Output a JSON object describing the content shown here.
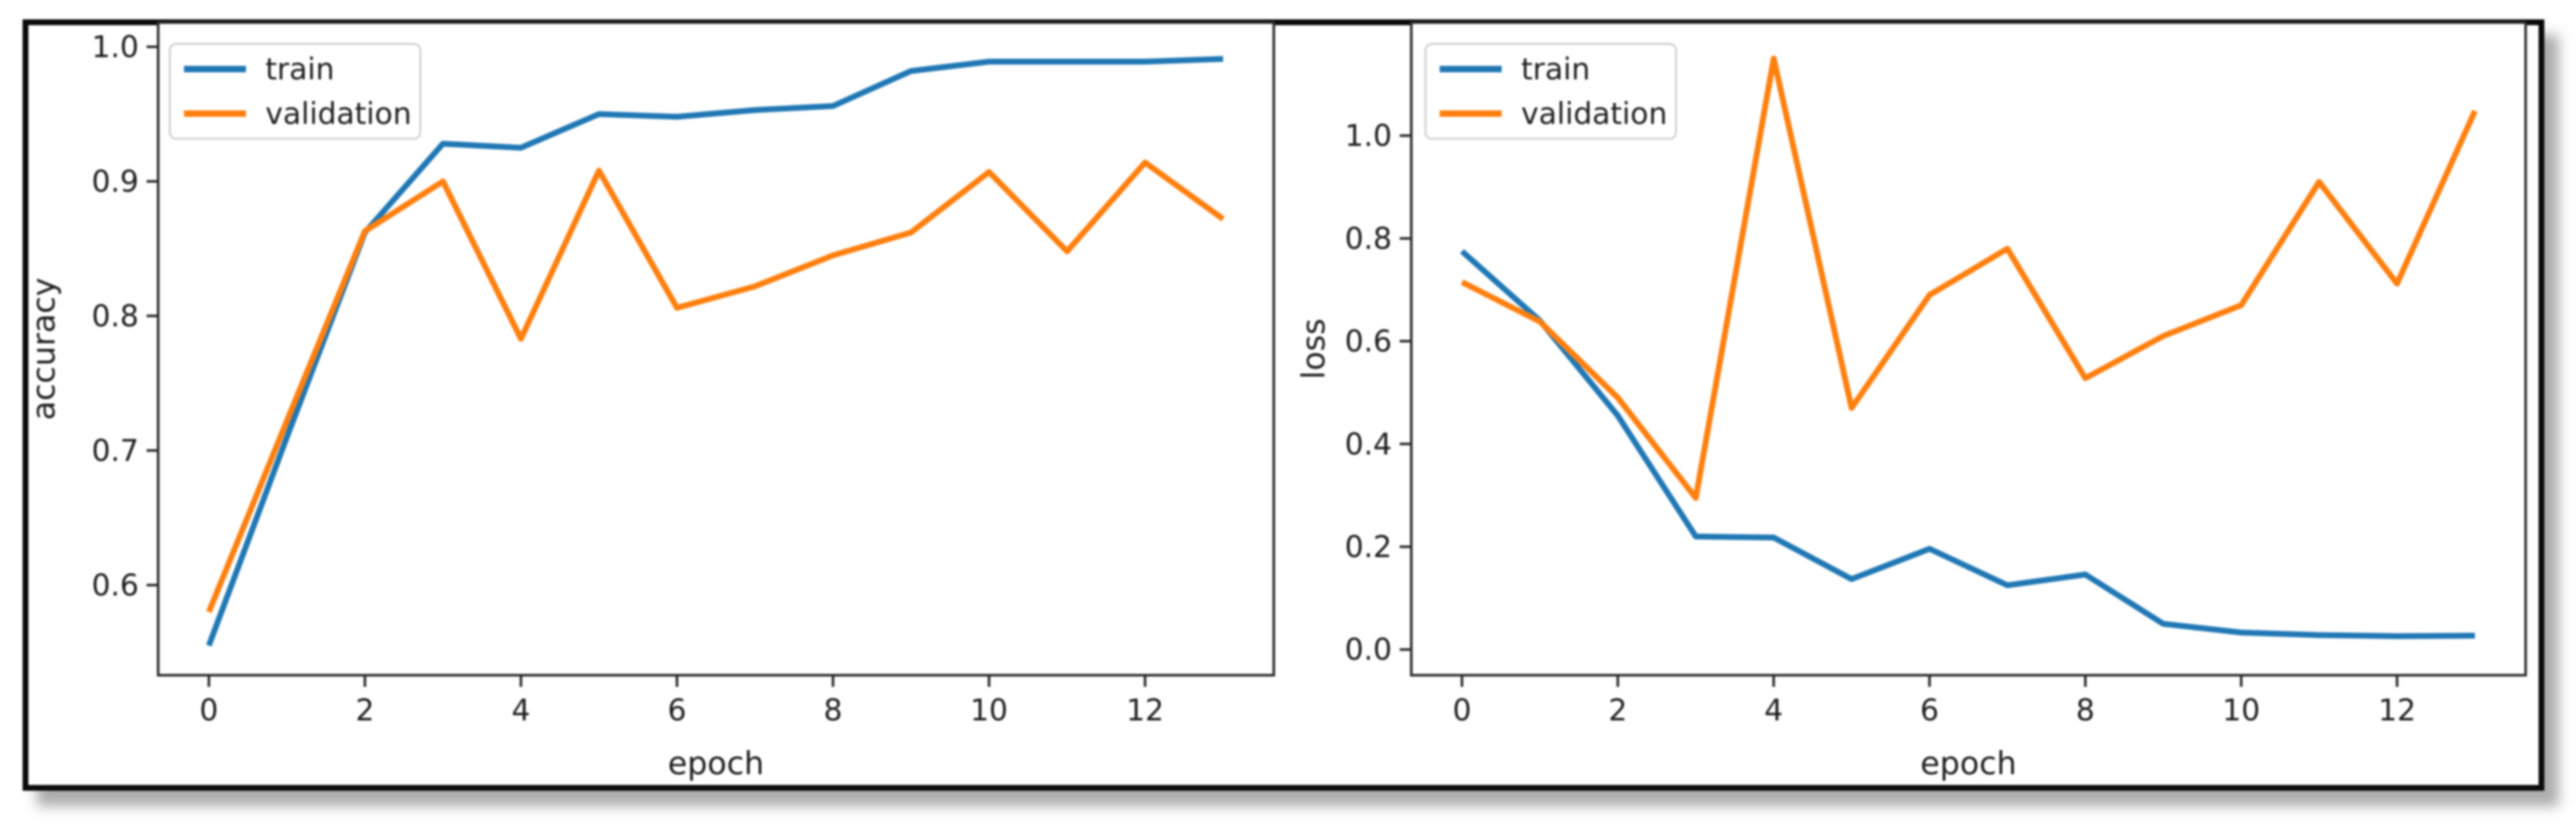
{
  "figure": {
    "description": "Two side-by-side training curve plots (matplotlib style) inside a black frame with drop shadow",
    "background": "#ffffff",
    "frame_border_color": "#0a0a0a"
  },
  "colors": {
    "train": "#1f77b4",
    "validation": "#ff7f0e",
    "text": "#1d1d1d",
    "spine": "#2a2a2a",
    "legend_border": "#cfcfcf",
    "legend_fill": "#ffffff"
  },
  "chart_data": [
    {
      "id": "accuracy",
      "type": "line",
      "title": "",
      "xlabel": "epoch",
      "ylabel": "accuracy",
      "x": [
        0,
        1,
        2,
        3,
        4,
        5,
        6,
        7,
        8,
        9,
        10,
        11,
        12,
        13
      ],
      "series": [
        {
          "name": "train",
          "color_key": "train",
          "values": [
            0.555,
            0.71,
            0.862,
            0.928,
            0.925,
            0.95,
            0.948,
            0.953,
            0.956,
            0.982,
            0.989,
            0.989,
            0.989,
            0.991
          ]
        },
        {
          "name": "validation",
          "color_key": "validation",
          "values": [
            0.58,
            0.722,
            0.863,
            0.9,
            0.783,
            0.908,
            0.806,
            0.822,
            0.845,
            0.862,
            0.907,
            0.848,
            0.914,
            0.872
          ]
        }
      ],
      "xticks": [
        0,
        2,
        4,
        6,
        8,
        10,
        12
      ],
      "xtick_labels": [
        "0",
        "2",
        "4",
        "6",
        "8",
        "10",
        "12"
      ],
      "yticks": [
        0.6,
        0.7,
        0.8,
        0.9,
        1.0
      ],
      "ytick_labels": [
        "0.6",
        "0.7",
        "0.8",
        "0.9",
        "1.0"
      ],
      "xlim": [
        -0.65,
        13.65
      ],
      "ylim": [
        0.533,
        1.018
      ],
      "grid": false,
      "legend": {
        "position": "upper-left",
        "entries": [
          "train",
          "validation"
        ]
      }
    },
    {
      "id": "loss",
      "type": "line",
      "title": "",
      "xlabel": "epoch",
      "ylabel": "loss",
      "x": [
        0,
        1,
        2,
        3,
        4,
        5,
        6,
        7,
        8,
        9,
        10,
        11,
        12,
        13
      ],
      "series": [
        {
          "name": "train",
          "color_key": "train",
          "values": [
            0.775,
            0.64,
            0.455,
            0.22,
            0.218,
            0.137,
            0.196,
            0.125,
            0.146,
            0.05,
            0.033,
            0.028,
            0.026,
            0.027
          ]
        },
        {
          "name": "validation",
          "color_key": "validation",
          "values": [
            0.715,
            0.638,
            0.49,
            0.295,
            1.15,
            0.47,
            0.69,
            0.78,
            0.528,
            0.61,
            0.67,
            0.91,
            0.712,
            1.048
          ]
        }
      ],
      "xticks": [
        0,
        2,
        4,
        6,
        8,
        10,
        12
      ],
      "xtick_labels": [
        "0",
        "2",
        "4",
        "6",
        "8",
        "10",
        "12"
      ],
      "yticks": [
        0.0,
        0.2,
        0.4,
        0.6,
        0.8,
        1.0
      ],
      "ytick_labels": [
        "0.0",
        "0.2",
        "0.4",
        "0.6",
        "0.8",
        "1.0"
      ],
      "xlim": [
        -0.65,
        13.65
      ],
      "ylim": [
        -0.05,
        1.22
      ],
      "grid": false,
      "legend": {
        "position": "upper-left",
        "entries": [
          "train",
          "validation"
        ]
      }
    }
  ]
}
